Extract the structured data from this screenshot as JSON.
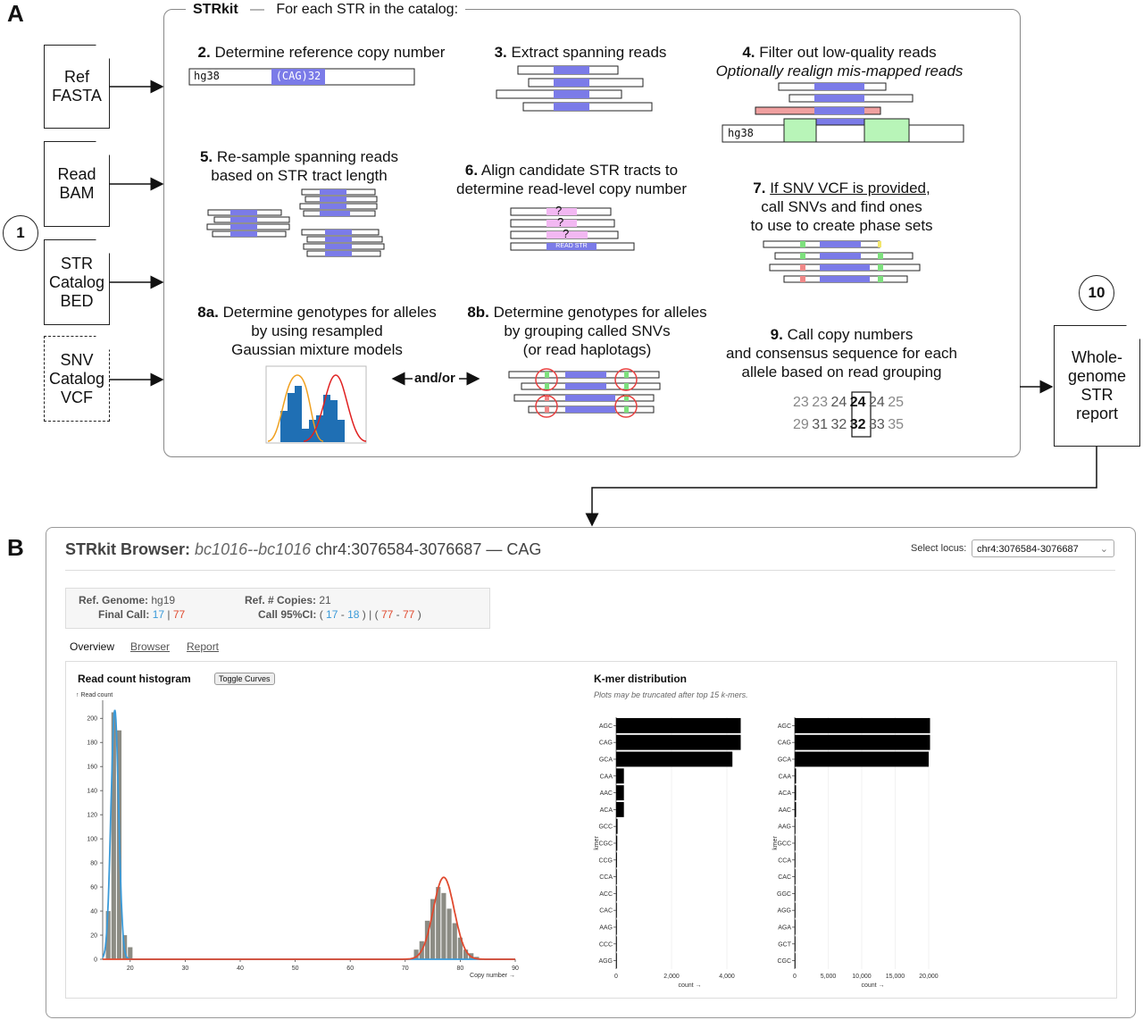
{
  "panel_a": {
    "letter": "A",
    "header": {
      "title": "STRkit",
      "subtitle": "For each STR in the catalog:"
    },
    "step1": "1",
    "inputs": [
      {
        "line1": "Ref",
        "line2": "FASTA",
        "line3": ""
      },
      {
        "line1": "Read",
        "line2": "BAM",
        "line3": ""
      },
      {
        "line1": "STR",
        "line2": "Catalog",
        "line3": "BED"
      },
      {
        "line1": "SNV",
        "line2": "Catalog",
        "line3": "VCF"
      }
    ],
    "steps": {
      "s2": {
        "num": "2.",
        "text": "Determine reference copy number",
        "ref_label": "hg38",
        "ref_str": "(CAG)32"
      },
      "s3": {
        "num": "3.",
        "text": "Extract spanning reads"
      },
      "s4": {
        "num": "4.",
        "text": "Filter out low-quality reads",
        "text2": "Optionally realign mis-mapped reads",
        "ref_label": "hg38"
      },
      "s5": {
        "num": "5.",
        "text": "Re-sample spanning reads",
        "text2": "based on STR tract length"
      },
      "s6": {
        "num": "6.",
        "text": "Align candidate STR tracts to",
        "text2": "determine read-level copy number",
        "q": "?",
        "read_str": "READ STR"
      },
      "s7": {
        "num": "7.",
        "text_underlined": "If SNV VCF is provided",
        "text": ",",
        "text2": "call SNVs and find ones",
        "text3": "to use to create phase sets"
      },
      "s8a": {
        "num": "8a.",
        "text": "Determine genotypes for alleles",
        "text2": "by using resampled",
        "text3": "Gaussian mixture models"
      },
      "s8b": {
        "num": "8b.",
        "text": "Determine genotypes for alleles",
        "text2": "by grouping called SNVs",
        "text3": "(or read haplotags)"
      },
      "andor": "and/or",
      "s9": {
        "num": "9.",
        "text": "Call copy numbers",
        "text2": "and consensus sequence for each",
        "text3": "allele based on read grouping",
        "row1": [
          "23",
          "23",
          "24",
          "24",
          "24",
          "25"
        ],
        "row1_bold_index": 3,
        "row2": [
          "29",
          "31",
          "32",
          "32",
          "33",
          "35"
        ],
        "row2_bold_index": 3
      }
    },
    "step10": "10",
    "output": {
      "line1": "Whole-",
      "line2": "genome",
      "line3": "STR",
      "line4": "report"
    }
  },
  "panel_b": {
    "letter": "B",
    "title_prefix": "STRkit Browser:",
    "sample": "bc1016--bc1016",
    "locus": "chr4:3076584-3076687",
    "dash": "—",
    "motif": "CAG",
    "select_label": "Select locus:",
    "select_value": "chr4:3076584-3076687",
    "summary": {
      "ref_genome_label": "Ref. Genome:",
      "ref_genome": "hg19",
      "final_call_label": "Final Call:",
      "call1": "17",
      "sep": "|",
      "call2": "77",
      "ref_copies_label": "Ref. # Copies:",
      "ref_copies": "21",
      "ci_label": "Call 95%CI:",
      "ci_open": "(",
      "ci1_lo": "17",
      "ci_dash": "-",
      "ci1_hi": "18",
      "ci_close": ")",
      "ci_sep": "|",
      "ci2_lo": "77",
      "ci2_hi": "77"
    },
    "tabs": [
      "Overview",
      "Browser",
      "Report"
    ],
    "histogram": {
      "title": "Read count histogram",
      "toggle_label": "Toggle Curves",
      "y_axis_label": "↑ Read count",
      "x_axis_label": "Copy number →"
    },
    "kmer": {
      "title": "K-mer distribution",
      "note": "Plots may be truncated after top 15 k-mers.",
      "y_axis_label": "kmer",
      "x_axis_label": "count →"
    },
    "colors": {
      "allele1": "#3a9ad9",
      "allele2": "#e04a2f",
      "bar": "#8c8c84",
      "kmer_bar": "#000000",
      "str_purple": "#7b7be8"
    }
  },
  "chart_data": [
    {
      "type": "bar",
      "title": "Read count histogram",
      "xlabel": "Copy number →",
      "ylabel": "↑ Read count",
      "x": [
        16,
        17,
        18,
        19,
        20,
        72,
        73,
        74,
        75,
        76,
        77,
        78,
        79,
        80,
        81,
        82,
        83
      ],
      "values": [
        40,
        205,
        190,
        20,
        10,
        8,
        15,
        32,
        50,
        60,
        55,
        42,
        30,
        18,
        8,
        5,
        2
      ],
      "xticks": [
        "20",
        "30",
        "40",
        "50",
        "60",
        "70",
        "80",
        "90"
      ],
      "yticks": [
        "0",
        "20",
        "40",
        "60",
        "80",
        "100",
        "120",
        "140",
        "160",
        "180",
        "200"
      ],
      "xlim": [
        15,
        90
      ],
      "ylim": [
        0,
        215
      ],
      "curves": [
        {
          "name": "allele 1",
          "mean": 17.2,
          "sd": 0.7,
          "peak": 207
        },
        {
          "name": "allele 2",
          "mean": 77,
          "sd": 1.9,
          "peak": 68
        }
      ]
    },
    {
      "type": "bar",
      "orientation": "horizontal",
      "ylabel": "kmer",
      "xlabel": "count →",
      "categories": [
        "AGC",
        "CAG",
        "GCA",
        "CAA",
        "AAC",
        "ACA",
        "GCC",
        "CGC",
        "CCG",
        "CCA",
        "ACC",
        "CAC",
        "AAG",
        "CCC",
        "AGG"
      ],
      "values": [
        4500,
        4500,
        4200,
        280,
        280,
        280,
        50,
        40,
        30,
        25,
        20,
        15,
        12,
        10,
        8
      ],
      "xticks": [
        "0",
        "2,000",
        "4,000"
      ],
      "xlim": [
        0,
        5000
      ]
    },
    {
      "type": "bar",
      "orientation": "horizontal",
      "ylabel": "kmer",
      "xlabel": "count →",
      "categories": [
        "AGC",
        "CAG",
        "GCA",
        "CAA",
        "ACA",
        "AAC",
        "AAG",
        "GCC",
        "CCA",
        "CAC",
        "GGC",
        "AGG",
        "AGA",
        "GCT",
        "CGC"
      ],
      "values": [
        20200,
        20200,
        20000,
        200,
        200,
        200,
        60,
        50,
        40,
        30,
        25,
        20,
        15,
        12,
        10
      ],
      "xticks": [
        "0",
        "5,000",
        "10,000",
        "15,000",
        "20,000"
      ],
      "xlim": [
        0,
        22000
      ]
    }
  ]
}
